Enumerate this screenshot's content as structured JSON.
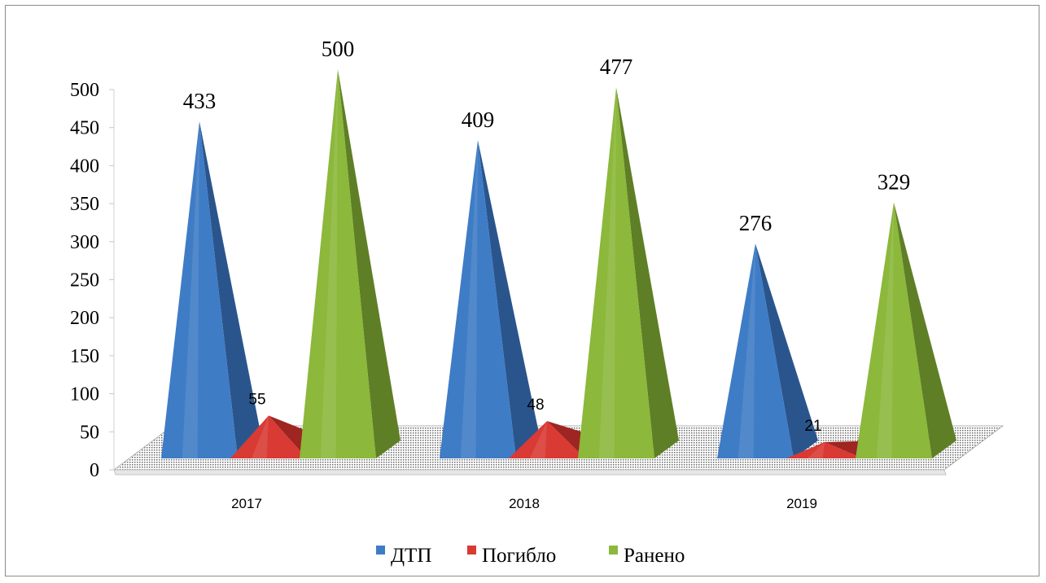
{
  "chart_data": {
    "type": "bar",
    "style": "3d-pyramid",
    "categories": [
      "2017",
      "2018",
      "2019"
    ],
    "series": [
      {
        "name": "ДТП",
        "values": [
          433,
          409,
          276
        ],
        "color": "#3f7cc6",
        "shade": "#2a558c"
      },
      {
        "name": "Погибло",
        "values": [
          55,
          48,
          21
        ],
        "color": "#d93a34",
        "shade": "#9e2521"
      },
      {
        "name": "Ранено",
        "values": [
          500,
          477,
          329
        ],
        "color": "#8cb83b",
        "shade": "#5f7f26"
      }
    ],
    "y_ticks": [
      "0",
      "50",
      "100",
      "150",
      "200",
      "250",
      "300",
      "350",
      "400",
      "450",
      "500"
    ],
    "ylim": [
      0,
      500
    ],
    "grid": false,
    "legend_position": "bottom"
  }
}
